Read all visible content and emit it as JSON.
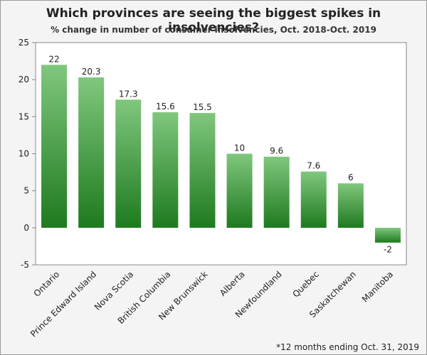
{
  "chart_data": {
    "type": "bar",
    "title": "Which provinces are seeing the biggest spikes in insolvencies?",
    "subtitle": "% change in number of consumer insolvencies, Oct. 2018-Oct. 2019",
    "categories": [
      "Ontario",
      "Prince Edward Island",
      "Nova Scotia",
      "British Columbia",
      "New Brunswick",
      "Alberta",
      "Newfoundland",
      "Quebec",
      "Saskatchewan",
      "Manitoba"
    ],
    "values": [
      22,
      20.3,
      17.3,
      15.6,
      15.5,
      10,
      9.6,
      7.6,
      6,
      -2
    ],
    "data_labels": [
      "22",
      "20.3",
      "17.3",
      "15.6",
      "15.5",
      "10",
      "9.6",
      "7.6",
      "6",
      "-2"
    ],
    "ylim": [
      -5,
      25
    ],
    "yticks": [
      -5,
      0,
      5,
      10,
      15,
      20,
      25
    ],
    "grid": false,
    "bar_color_top": "#80c77e",
    "bar_color_bottom": "#1e7a1e",
    "plot_background": "#ffffff",
    "footnote": "*12 months ending Oct. 31, 2019"
  }
}
